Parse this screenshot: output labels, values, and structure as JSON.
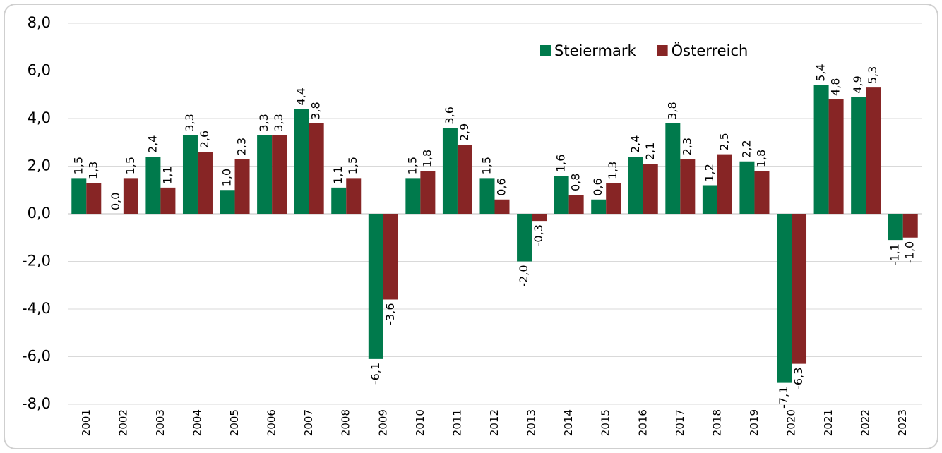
{
  "chart_data": {
    "type": "bar",
    "categories": [
      "2001",
      "2002",
      "2003",
      "2004",
      "2005",
      "2006",
      "2007",
      "2008",
      "2009",
      "2010",
      "2011",
      "2012",
      "2013",
      "2014",
      "2015",
      "2016",
      "2017",
      "2018",
      "2019",
      "2020",
      "2021",
      "2022",
      "2023"
    ],
    "series": [
      {
        "name": "Steiermark",
        "color": "#007a4c",
        "values": [
          1.5,
          0.0,
          2.4,
          3.3,
          1.0,
          3.3,
          4.4,
          1.1,
          -6.1,
          1.5,
          3.6,
          1.5,
          -2.0,
          1.6,
          0.6,
          2.4,
          3.8,
          1.2,
          2.2,
          -7.1,
          5.4,
          4.9,
          -1.1
        ],
        "value_labels": [
          "1,5",
          "0,0",
          "2,4",
          "3,3",
          "1,0",
          "3,3",
          "4,4",
          "1,1",
          "-6,1",
          "1,5",
          "3,6",
          "1,5",
          "-2,0",
          "1,6",
          "0,6",
          "2,4",
          "3,8",
          "1,2",
          "2,2",
          "-7,1",
          "5,4",
          "4,9",
          "-1,1"
        ]
      },
      {
        "name": "Österreich",
        "color": "#872525",
        "values": [
          1.3,
          1.5,
          1.1,
          2.6,
          2.3,
          3.3,
          3.8,
          1.5,
          -3.6,
          1.8,
          2.9,
          0.6,
          -0.3,
          0.8,
          1.3,
          2.1,
          2.3,
          2.5,
          1.8,
          -6.3,
          4.8,
          5.3,
          -1.0
        ],
        "value_labels": [
          "1,3",
          "1,5",
          "1,1",
          "2,6",
          "2,3",
          "3,3",
          "3,8",
          "1,5",
          "-3,6",
          "1,8",
          "2,9",
          "0,6",
          "-0,3",
          "0,8",
          "1,3",
          "2,1",
          "2,3",
          "2,5",
          "1,8",
          "-6,3",
          "4,8",
          "5,3",
          "-1,0"
        ]
      }
    ],
    "ylim": [
      -8,
      8
    ],
    "yticks": [
      {
        "value": 8,
        "label": "8,0"
      },
      {
        "value": 6,
        "label": "6,0"
      },
      {
        "value": 4,
        "label": "4,0"
      },
      {
        "value": 2,
        "label": "2,0"
      },
      {
        "value": 0,
        "label": "0,0"
      },
      {
        "value": -2,
        "label": "-2,0"
      },
      {
        "value": -4,
        "label": "-4,0"
      },
      {
        "value": -6,
        "label": "-6,0"
      },
      {
        "value": -8,
        "label": "-8,0"
      }
    ],
    "grid": true,
    "legend": "top-right"
  }
}
